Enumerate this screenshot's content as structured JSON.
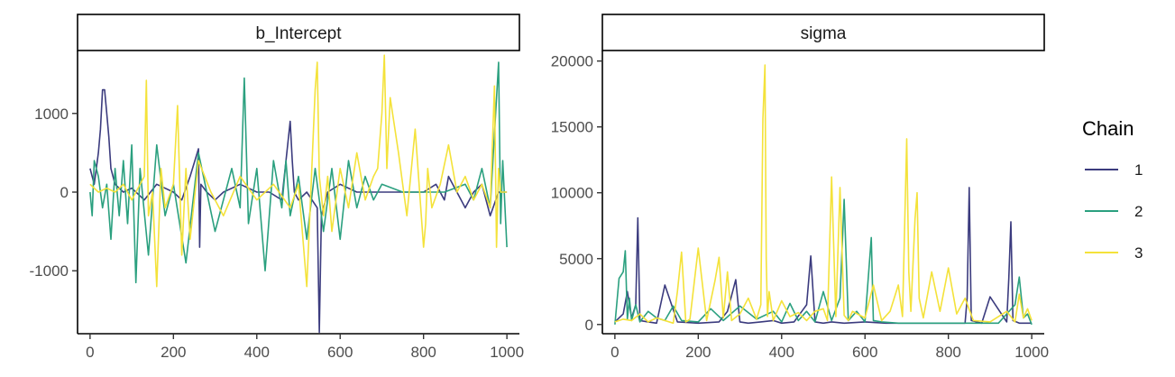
{
  "chart_data": {
    "type": "line",
    "legend": {
      "title": "Chain",
      "placement": "right"
    },
    "series_meta": [
      {
        "name": "1",
        "color": "#3B3B7E"
      },
      {
        "name": "2",
        "color": "#2BA07F"
      },
      {
        "name": "3",
        "color": "#F4E23A"
      }
    ],
    "facets": [
      {
        "title": "b_Intercept",
        "xlim": [
          -30,
          1030
        ],
        "ylim": [
          -1800,
          1800
        ],
        "xticks": [
          0,
          200,
          400,
          600,
          800,
          1000
        ],
        "xtick_labels": [
          "0",
          "200",
          "400",
          "600",
          "800",
          "1000"
        ],
        "yticks": [
          -1000,
          0,
          1000
        ],
        "ytick_labels": [
          "-1000",
          "0",
          "1000"
        ],
        "series": [
          {
            "name": "1",
            "x": [
              0,
              10,
              20,
              25,
              30,
              35,
              40,
              45,
              50,
              60,
              80,
              100,
              130,
              160,
              200,
              220,
              240,
              260,
              263,
              266,
              280,
              300,
              320,
              360,
              400,
              430,
              460,
              480,
              485,
              490,
              500,
              520,
              545,
              550,
              555,
              570,
              600,
              640,
              700,
              760,
              800,
              830,
              850,
              860,
              880,
              900,
              920,
              940,
              960,
              980,
              1000
            ],
            "y": [
              300,
              100,
              500,
              800,
              1300,
              1300,
              1000,
              700,
              300,
              100,
              0,
              50,
              -100,
              100,
              0,
              -100,
              200,
              550,
              -700,
              100,
              0,
              -100,
              0,
              100,
              0,
              0,
              -100,
              900,
              400,
              0,
              -100,
              0,
              -200,
              -1780,
              -300,
              0,
              100,
              0,
              0,
              0,
              0,
              100,
              -100,
              200,
              0,
              -200,
              0,
              100,
              -300,
              0,
              0
            ]
          },
          {
            "name": "2",
            "x": [
              0,
              5,
              10,
              20,
              30,
              40,
              50,
              60,
              70,
              80,
              90,
              100,
              110,
              120,
              140,
              160,
              180,
              200,
              230,
              260,
              300,
              340,
              360,
              370,
              380,
              400,
              420,
              440,
              460,
              470,
              480,
              500,
              520,
              540,
              560,
              580,
              600,
              620,
              640,
              660,
              680,
              700,
              750,
              800,
              850,
              900,
              920,
              940,
              960,
              980,
              985,
              990,
              1000
            ],
            "y": [
              0,
              -300,
              400,
              200,
              -200,
              100,
              -600,
              300,
              -300,
              400,
              -400,
              600,
              -1150,
              300,
              -800,
              600,
              -300,
              100,
              -900,
              500,
              -500,
              300,
              -200,
              1450,
              -400,
              300,
              -1000,
              400,
              -200,
              400,
              -300,
              200,
              -600,
              300,
              -500,
              300,
              -600,
              400,
              -200,
              200,
              -100,
              100,
              0,
              0,
              0,
              100,
              -100,
              300,
              -200,
              1650,
              -400,
              400,
              -700
            ]
          },
          {
            "name": "3",
            "x": [
              0,
              20,
              40,
              60,
              80,
              100,
              130,
              135,
              140,
              150,
              160,
              170,
              180,
              200,
              210,
              220,
              230,
              240,
              260,
              290,
              320,
              360,
              400,
              440,
              480,
              500,
              520,
              540,
              545,
              550,
              560,
              570,
              580,
              600,
              620,
              640,
              660,
              680,
              690,
              700,
              706,
              712,
              720,
              740,
              760,
              780,
              800,
              805,
              810,
              820,
              840,
              860,
              880,
              900,
              920,
              940,
              960,
              970,
              975,
              980,
              985,
              1000
            ],
            "y": [
              100,
              0,
              50,
              0,
              100,
              -100,
              200,
              1420,
              -300,
              0,
              -1200,
              300,
              -200,
              100,
              1100,
              -800,
              300,
              -600,
              400,
              0,
              -300,
              200,
              -100,
              100,
              -200,
              100,
              -1200,
              1300,
              1650,
              200,
              -300,
              200,
              -500,
              300,
              -200,
              500,
              -100,
              200,
              300,
              1000,
              1740,
              300,
              1200,
              500,
              -300,
              800,
              -700,
              -400,
              300,
              -200,
              100,
              600,
              0,
              200,
              -100,
              100,
              -200,
              1350,
              -700,
              300,
              0,
              0
            ]
          }
        ]
      },
      {
        "title": "sigma",
        "xlim": [
          -30,
          1030
        ],
        "ylim": [
          -700,
          20800
        ],
        "xticks": [
          0,
          200,
          400,
          600,
          800,
          1000
        ],
        "xtick_labels": [
          "0",
          "200",
          "400",
          "600",
          "800",
          "1000"
        ],
        "yticks": [
          0,
          5000,
          10000,
          15000,
          20000
        ],
        "ytick_labels": [
          "0",
          "5000",
          "10000",
          "15000",
          "20000"
        ],
        "series": [
          {
            "name": "1",
            "x": [
              0,
              20,
              30,
              40,
              50,
              55,
              60,
              80,
              100,
              120,
              150,
              200,
              250,
              270,
              290,
              300,
              320,
              350,
              380,
              400,
              430,
              460,
              470,
              480,
              500,
              520,
              550,
              600,
              650,
              700,
              800,
              840,
              845,
              850,
              855,
              880,
              900,
              940,
              945,
              950,
              955,
              970,
              1000
            ],
            "y": [
              200,
              800,
              2500,
              500,
              1500,
              8100,
              300,
              200,
              100,
              3000,
              200,
              100,
              200,
              1000,
              3400,
              200,
              100,
              200,
              300,
              100,
              200,
              1500,
              5200,
              200,
              100,
              200,
              100,
              200,
              100,
              100,
              100,
              100,
              2000,
              10400,
              300,
              100,
              2100,
              200,
              3500,
              7800,
              300,
              100,
              100
            ]
          },
          {
            "name": "2",
            "x": [
              0,
              10,
              20,
              25,
              30,
              35,
              40,
              50,
              60,
              80,
              100,
              120,
              140,
              160,
              200,
              230,
              260,
              300,
              340,
              380,
              400,
              420,
              440,
              460,
              480,
              500,
              520,
              540,
              550,
              560,
              580,
              600,
              615,
              620,
              640,
              680,
              700,
              750,
              800,
              900,
              920,
              960,
              970,
              980,
              990,
              1000
            ],
            "y": [
              0,
              3500,
              4000,
              5600,
              400,
              2000,
              300,
              1500,
              200,
              1000,
              500,
              300,
              1400,
              300,
              200,
              1200,
              300,
              1400,
              400,
              1000,
              200,
              1600,
              300,
              1000,
              200,
              2500,
              300,
              2000,
              9500,
              300,
              1000,
              200,
              6600,
              300,
              200,
              100,
              100,
              100,
              100,
              100,
              100,
              1500,
              3600,
              500,
              800,
              0
            ]
          },
          {
            "name": "3",
            "x": [
              0,
              20,
              40,
              60,
              80,
              100,
              140,
              150,
              160,
              170,
              180,
              200,
              220,
              240,
              250,
              260,
              270,
              280,
              300,
              320,
              340,
              350,
              355,
              360,
              363,
              366,
              370,
              380,
              400,
              420,
              440,
              460,
              480,
              500,
              510,
              520,
              530,
              540,
              550,
              560,
              570,
              600,
              620,
              640,
              660,
              680,
              690,
              700,
              705,
              710,
              720,
              725,
              730,
              740,
              760,
              780,
              800,
              820,
              840,
              860,
              900,
              940,
              960,
              970,
              980,
              990,
              1000
            ],
            "y": [
              200,
              400,
              300,
              800,
              200,
              500,
              100,
              2500,
              5500,
              200,
              400,
              5800,
              300,
              3300,
              5100,
              500,
              4000,
              300,
              800,
              2000,
              400,
              1500,
              15600,
              19700,
              5000,
              600,
              2500,
              300,
              1800,
              600,
              900,
              300,
              1000,
              1200,
              300,
              11200,
              600,
              10400,
              700,
              300,
              1000,
              500,
              3000,
              300,
              1000,
              3000,
              600,
              14100,
              4000,
              1000,
              8000,
              10000,
              2000,
              500,
              4000,
              1000,
              4300,
              800,
              2000,
              300,
              200,
              1000,
              200,
              2300,
              500,
              1200,
              300
            ]
          }
        ]
      }
    ]
  }
}
